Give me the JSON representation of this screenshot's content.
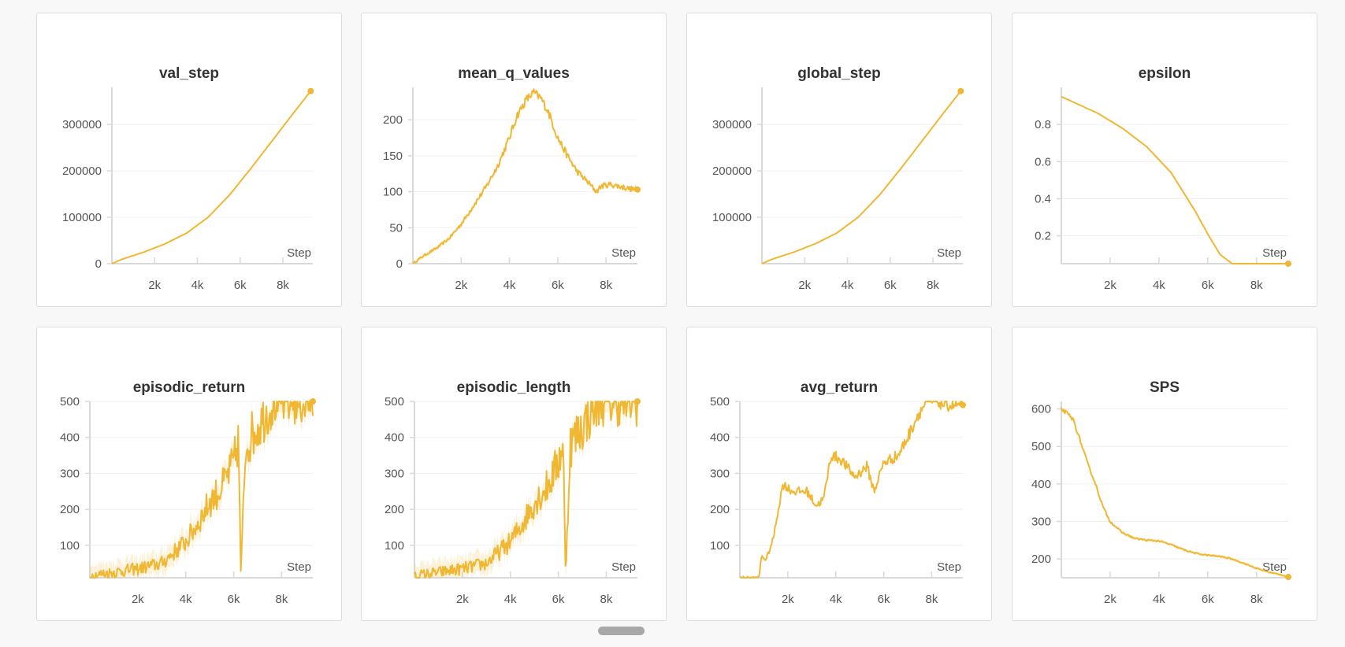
{
  "colors": {
    "series": "#f0b732",
    "axis": "#d9d9d9",
    "grid": "#efefef",
    "tick": "#555555"
  },
  "x_axis_label": "Step",
  "chart_data": [
    {
      "type": "line",
      "title": "val_step",
      "xlabel": "Step",
      "ylabel": "",
      "xlim": [
        0,
        9400
      ],
      "ylim": [
        0,
        380000
      ],
      "xticks": [
        2000,
        4000,
        6000,
        8000
      ],
      "xtick_labels": [
        "2k",
        "4k",
        "6k",
        "8k"
      ],
      "yticks": [
        0,
        100000,
        200000,
        300000
      ],
      "ytick_labels": [
        "0",
        "100000",
        "200000",
        "300000"
      ],
      "x": [
        0,
        500,
        1500,
        2500,
        3500,
        4500,
        5500,
        6500,
        7500,
        8500,
        9300
      ],
      "y": [
        0,
        10000,
        25000,
        43000,
        66000,
        100000,
        148000,
        205000,
        265000,
        325000,
        372000
      ],
      "endpoint": true,
      "noise": 0,
      "band": 0
    },
    {
      "type": "line",
      "title": "mean_q_values",
      "xlabel": "Step",
      "ylabel": "",
      "xlim": [
        0,
        9300
      ],
      "ylim": [
        0,
        245
      ],
      "xticks": [
        2000,
        4000,
        6000,
        8000
      ],
      "xtick_labels": [
        "2k",
        "4k",
        "6k",
        "8k"
      ],
      "yticks": [
        0,
        50,
        100,
        150,
        200
      ],
      "ytick_labels": [
        "0",
        "50",
        "100",
        "150",
        "200"
      ],
      "x": [
        0,
        400,
        1000,
        1500,
        2000,
        2500,
        3000,
        3500,
        4000,
        4300,
        4700,
        5000,
        5300,
        5600,
        6000,
        6400,
        6800,
        7200,
        7600,
        7800,
        8200,
        8600,
        9000,
        9300
      ],
      "y": [
        0,
        10,
        22,
        35,
        55,
        80,
        105,
        135,
        175,
        205,
        228,
        238,
        230,
        212,
        175,
        150,
        128,
        115,
        100,
        108,
        110,
        107,
        104,
        103
      ],
      "endpoint": true,
      "noise": 6,
      "band": 3
    },
    {
      "type": "line",
      "title": "global_step",
      "xlabel": "Step",
      "ylabel": "",
      "xlim": [
        0,
        9400
      ],
      "ylim": [
        0,
        380000
      ],
      "xticks": [
        2000,
        4000,
        6000,
        8000
      ],
      "xtick_labels": [
        "2k",
        "4k",
        "6k",
        "8k"
      ],
      "yticks": [
        100000,
        200000,
        300000
      ],
      "ytick_labels": [
        "100000",
        "200000",
        "300000"
      ],
      "x": [
        0,
        500,
        1500,
        2500,
        3500,
        4500,
        5500,
        6500,
        7500,
        8500,
        9300
      ],
      "y": [
        0,
        10000,
        25000,
        43000,
        66000,
        100000,
        148000,
        205000,
        265000,
        325000,
        372000
      ],
      "endpoint": true,
      "noise": 0,
      "band": 0
    },
    {
      "type": "line",
      "title": "epsilon",
      "xlabel": "Step",
      "ylabel": "",
      "xlim": [
        0,
        9300
      ],
      "ylim": [
        0.05,
        1.0
      ],
      "xticks": [
        2000,
        4000,
        6000,
        8000
      ],
      "xtick_labels": [
        "2k",
        "4k",
        "6k",
        "8k"
      ],
      "yticks": [
        0.2,
        0.4,
        0.6,
        0.8
      ],
      "ytick_labels": [
        "0.2",
        "0.4",
        "0.6",
        "0.8"
      ],
      "x": [
        0,
        500,
        1500,
        2500,
        3500,
        4500,
        5500,
        6000,
        6500,
        7000,
        7100,
        9300
      ],
      "y": [
        0.95,
        0.92,
        0.86,
        0.78,
        0.68,
        0.54,
        0.33,
        0.21,
        0.1,
        0.05,
        0.05,
        0.05
      ],
      "endpoint": true,
      "noise": 0,
      "band": 0
    },
    {
      "type": "line",
      "title": "episodic_return",
      "xlabel": "Step",
      "ylabel": "",
      "xlim": [
        0,
        9300
      ],
      "ylim": [
        10,
        500
      ],
      "xticks": [
        2000,
        4000,
        6000,
        8000
      ],
      "xtick_labels": [
        "2k",
        "4k",
        "6k",
        "8k"
      ],
      "yticks": [
        100,
        200,
        300,
        400,
        500
      ],
      "ytick_labels": [
        "100",
        "200",
        "300",
        "400",
        "500"
      ],
      "x": [
        0,
        1000,
        2000,
        3000,
        3500,
        4000,
        4500,
        5000,
        5500,
        5800,
        6000,
        6200,
        6300,
        6500,
        7000,
        7500,
        7700,
        8000,
        9300
      ],
      "y": [
        15,
        25,
        35,
        50,
        80,
        110,
        160,
        220,
        260,
        300,
        330,
        390,
        15,
        380,
        430,
        480,
        500,
        500,
        500
      ],
      "endpoint": true,
      "noise": 70,
      "band": 30
    },
    {
      "type": "line",
      "title": "episodic_length",
      "xlabel": "Step",
      "ylabel": "",
      "xlim": [
        0,
        9300
      ],
      "ylim": [
        10,
        500
      ],
      "xticks": [
        2000,
        4000,
        6000,
        8000
      ],
      "xtick_labels": [
        "2k",
        "4k",
        "6k",
        "8k"
      ],
      "yticks": [
        100,
        200,
        300,
        400,
        500
      ],
      "ytick_labels": [
        "100",
        "200",
        "300",
        "400",
        "500"
      ],
      "x": [
        0,
        1000,
        2000,
        3000,
        3500,
        4000,
        4500,
        5000,
        5500,
        5800,
        6000,
        6200,
        6300,
        6500,
        7000,
        7500,
        7700,
        8000,
        9300
      ],
      "y": [
        15,
        25,
        35,
        50,
        80,
        110,
        160,
        220,
        260,
        300,
        330,
        390,
        15,
        380,
        430,
        480,
        500,
        500,
        500
      ],
      "endpoint": true,
      "noise": 70,
      "band": 30
    },
    {
      "type": "line",
      "title": "avg_return",
      "xlabel": "Step",
      "ylabel": "",
      "xlim": [
        0,
        9300
      ],
      "ylim": [
        10,
        500
      ],
      "xticks": [
        2000,
        4000,
        6000,
        8000
      ],
      "xtick_labels": [
        "2k",
        "4k",
        "6k",
        "8k"
      ],
      "yticks": [
        100,
        200,
        300,
        400,
        500
      ],
      "ytick_labels": [
        "100",
        "200",
        "300",
        "400",
        "500"
      ],
      "x": [
        0,
        800,
        900,
        1100,
        1400,
        1600,
        1800,
        2200,
        2800,
        3200,
        3500,
        3800,
        4200,
        4800,
        5300,
        5600,
        6000,
        6600,
        7000,
        7400,
        7800,
        8200,
        8600,
        9300
      ],
      "y": [
        10,
        10,
        70,
        60,
        120,
        200,
        270,
        250,
        250,
        210,
        230,
        350,
        340,
        290,
        320,
        250,
        330,
        350,
        400,
        460,
        500,
        500,
        490,
        490
      ],
      "endpoint": true,
      "noise": 18,
      "band": 4
    },
    {
      "type": "line",
      "title": "SPS",
      "xlabel": "Step",
      "ylabel": "",
      "xlim": [
        0,
        9300
      ],
      "ylim": [
        150,
        620
      ],
      "xticks": [
        2000,
        4000,
        6000,
        8000
      ],
      "xtick_labels": [
        "2k",
        "4k",
        "6k",
        "8k"
      ],
      "yticks": [
        200,
        300,
        400,
        500,
        600
      ],
      "ytick_labels": [
        "200",
        "300",
        "400",
        "500",
        "600"
      ],
      "x": [
        0,
        200,
        500,
        800,
        1100,
        1400,
        1700,
        2000,
        2500,
        3000,
        3500,
        4000,
        4500,
        5000,
        5500,
        6000,
        6500,
        7000,
        7500,
        8000,
        8500,
        9000,
        9300
      ],
      "y": [
        600,
        590,
        570,
        510,
        450,
        400,
        340,
        300,
        270,
        255,
        250,
        248,
        238,
        225,
        215,
        210,
        207,
        200,
        188,
        175,
        165,
        158,
        152
      ],
      "endpoint": true,
      "noise": 5,
      "band": 4
    }
  ]
}
